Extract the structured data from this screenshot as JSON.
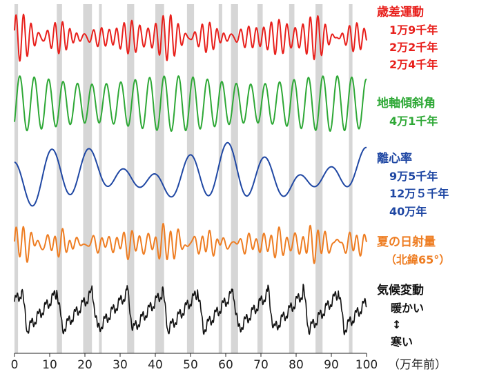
{
  "chart_data": {
    "type": "line",
    "x_axis": {
      "min": 0,
      "max": 100,
      "ticks": [
        0,
        10,
        20,
        30,
        40,
        50,
        60,
        70,
        80,
        90,
        100
      ],
      "unit": "（万年前）"
    },
    "shaded_intervals": [
      [
        0,
        1
      ],
      [
        12,
        13.5
      ],
      [
        19.5,
        22
      ],
      [
        24,
        24.8
      ],
      [
        32,
        34
      ],
      [
        40,
        42.5
      ],
      [
        49,
        51
      ],
      [
        58,
        59
      ],
      [
        61.5,
        63.5
      ],
      [
        69,
        70.5
      ],
      [
        78,
        79.5
      ],
      [
        85.5,
        87.5
      ],
      [
        95,
        96
      ]
    ],
    "series": [
      {
        "key": "precession",
        "name": "歳差運動",
        "periods": [
          "1万9千年",
          "2万2千年",
          "2万4千年"
        ],
        "color": "#e8201c"
      },
      {
        "key": "obliquity",
        "name": "地軸傾斜角",
        "periods": [
          "4万1千年"
        ],
        "color": "#2ea836"
      },
      {
        "key": "eccentricity",
        "name": "離心率",
        "periods": [
          "9万5千年",
          "12万５千年",
          "40万年"
        ],
        "color": "#1f47a3"
      },
      {
        "key": "insolation",
        "name": "夏の日射量",
        "note": "（北緯65°）",
        "color": "#ee7d22"
      },
      {
        "key": "climate",
        "name": "気候変動",
        "warm": "暖かい",
        "arrow": "↕",
        "cold": "寒い",
        "color": "#111111"
      }
    ]
  }
}
